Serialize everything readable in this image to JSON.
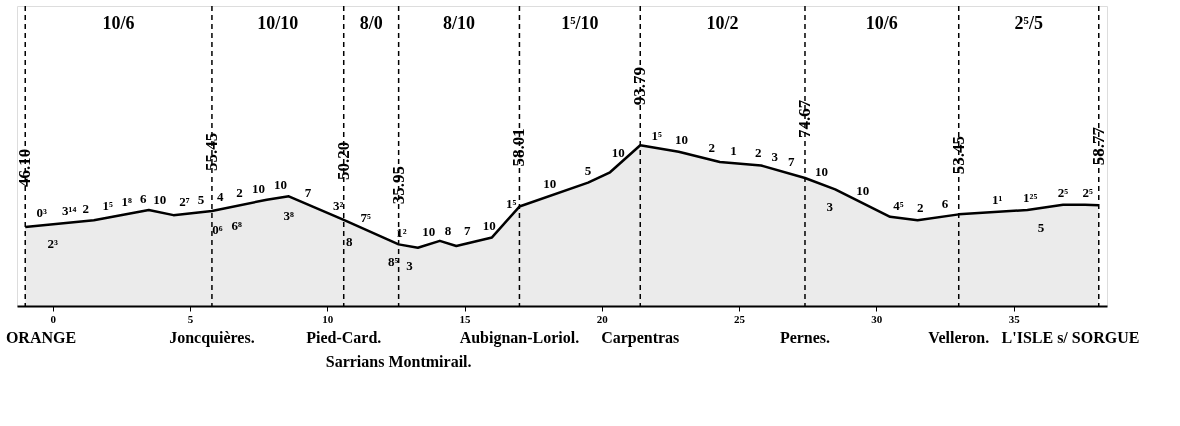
{
  "chart_data": {
    "type": "area",
    "x": [
      -1.0,
      1.5,
      3.5,
      4.4,
      5.8,
      7.8,
      8.6,
      10.6,
      12.6,
      13.3,
      14.1,
      14.7,
      16.0,
      17.0,
      19.5,
      20.3,
      21.4,
      22.8,
      24.3,
      25.8,
      27.4,
      28.5,
      30.5,
      31.5,
      33.0,
      35.5,
      36.8,
      37.6,
      38.1
    ],
    "series": [
      {
        "color": "#000000",
        "values": [
          46.1,
          50,
          56,
          53,
          55.45,
          62,
          64,
          50.2,
          35.95,
          34,
          38,
          35,
          40,
          58.01,
          72,
          78,
          93.79,
          90,
          84,
          82,
          74.67,
          68,
          52,
          50,
          53.45,
          56,
          59,
          59,
          58.77
        ],
        "value_labels": [
          "46.10",
          null,
          null,
          null,
          "55.45",
          null,
          null,
          "50.20",
          "35.95",
          null,
          null,
          null,
          null,
          "58.01",
          null,
          null,
          "93.79",
          null,
          null,
          null,
          "74.67",
          null,
          null,
          null,
          "53.45",
          null,
          null,
          null,
          "58.77"
        ]
      }
    ],
    "xlim": [
      -1.3,
      38.4
    ],
    "xticks": [
      0,
      5,
      10,
      15,
      20,
      25,
      30,
      35
    ],
    "ylim": [
      0,
      175
    ],
    "tick_labels": "x",
    "grid": false,
    "legend": false,
    "line_style": "solid",
    "ref_lines": [
      {
        "axis": "x",
        "value": -1.0,
        "line_style": "dashed"
      },
      {
        "axis": "x",
        "value": 5.8,
        "line_style": "dashed"
      },
      {
        "axis": "x",
        "value": 10.6,
        "line_style": "dashed"
      },
      {
        "axis": "x",
        "value": 12.6,
        "line_style": "dashed"
      },
      {
        "axis": "x",
        "value": 17.0,
        "line_style": "dashed"
      },
      {
        "axis": "x",
        "value": 21.4,
        "line_style": "dashed"
      },
      {
        "axis": "x",
        "value": 27.4,
        "line_style": "dashed"
      },
      {
        "axis": "x",
        "value": 33.0,
        "line_style": "dashed"
      },
      {
        "axis": "x",
        "value": 38.1,
        "line_style": "dashed"
      }
    ],
    "annotations": [
      "ORANGE",
      "Joncquières.",
      "Pied-Card.",
      "Sarrians Montmirail.",
      "Aubignan-Loriol.",
      "Carpentras",
      "Pernes.",
      "Velleron.",
      "L'ISLE s/ SORGUE",
      "10/6",
      "10/10",
      "8/0",
      "8/10",
      "1⁵/10",
      "10/2",
      "10/6",
      "2⁵/5",
      {
        "text": "0³",
        "x": -0.4,
        "y": 47.0
      },
      {
        "text": "2³",
        "x": 0.0,
        "y": 47.7
      },
      {
        "text": "3¹⁴",
        "x": 0.6,
        "y": 48.6
      },
      {
        "text": "2",
        "x": 1.2,
        "y": 49.5
      },
      {
        "text": "1⁵",
        "x": 2.0,
        "y": 51.5
      },
      {
        "text": "1⁸",
        "x": 2.7,
        "y": 53.6
      },
      {
        "text": "6",
        "x": 3.3,
        "y": 55.4
      },
      {
        "text": "10",
        "x": 3.9,
        "y": 54.7
      },
      {
        "text": "2⁷",
        "x": 4.8,
        "y": 53.7
      },
      {
        "text": "5",
        "x": 5.4,
        "y": 54.7
      },
      {
        "text": "4",
        "x": 6.1,
        "y": 56.4
      },
      {
        "text": "0⁶",
        "x": 6.0,
        "y": 56.1
      },
      {
        "text": "2",
        "x": 6.8,
        "y": 58.7
      },
      {
        "text": "6⁸",
        "x": 6.7,
        "y": 58.4
      },
      {
        "text": "10",
        "x": 7.5,
        "y": 61.0
      },
      {
        "text": "10",
        "x": 8.3,
        "y": 63.3
      },
      {
        "text": "3⁸",
        "x": 8.6,
        "y": 64
      },
      {
        "text": "7",
        "x": 9.3,
        "y": 59.2
      },
      {
        "text": "3²",
        "x": 10.4,
        "y": 51.6
      },
      {
        "text": "8",
        "x": 10.8,
        "y": 48.8
      },
      {
        "text": "7⁵",
        "x": 11.4,
        "y": 44.5
      },
      {
        "text": "1²",
        "x": 12.7,
        "y": 35.7
      },
      {
        "text": "8⁵",
        "x": 12.4,
        "y": 37.4
      },
      {
        "text": "3",
        "x": 13.0,
        "y": 34.8
      },
      {
        "text": "10",
        "x": 13.7,
        "y": 36.0
      },
      {
        "text": "8",
        "x": 14.4,
        "y": 36.5
      },
      {
        "text": "7",
        "x": 15.1,
        "y": 36.5
      },
      {
        "text": "10",
        "x": 15.9,
        "y": 39.6
      },
      {
        "text": "1⁵",
        "x": 16.7,
        "y": 52.6
      },
      {
        "text": "10",
        "x": 18.1,
        "y": 64.2
      },
      {
        "text": "5",
        "x": 19.5,
        "y": 72
      },
      {
        "text": "10",
        "x": 20.6,
        "y": 82.3
      },
      {
        "text": "1⁵",
        "x": 22.0,
        "y": 92.2
      },
      {
        "text": "10",
        "x": 22.9,
        "y": 89.6
      },
      {
        "text": "2",
        "x": 24.0,
        "y": 85.2
      },
      {
        "text": "1",
        "x": 24.8,
        "y": 83.3
      },
      {
        "text": "2",
        "x": 25.7,
        "y": 82.1
      },
      {
        "text": "3",
        "x": 26.3,
        "y": 79.7
      },
      {
        "text": "7",
        "x": 26.9,
        "y": 77.0
      },
      {
        "text": "10",
        "x": 28.0,
        "y": 71.0
      },
      {
        "text": "3",
        "x": 28.3,
        "y": 69.2
      },
      {
        "text": "10",
        "x": 29.5,
        "y": 60
      },
      {
        "text": "4⁵",
        "x": 30.8,
        "y": 51.4
      },
      {
        "text": "2",
        "x": 31.6,
        "y": 50.2
      },
      {
        "text": "6",
        "x": 32.5,
        "y": 52.3
      },
      {
        "text": "1¹",
        "x": 34.4,
        "y": 54.9
      },
      {
        "text": "1²⁵",
        "x": 35.6,
        "y": 56.2
      },
      {
        "text": "5",
        "x": 36.0,
        "y": 56.9
      },
      {
        "text": "2⁵",
        "x": 36.8,
        "y": 59
      },
      {
        "text": "2⁵",
        "x": 37.7,
        "y": 59.0
      }
    ]
  }
}
